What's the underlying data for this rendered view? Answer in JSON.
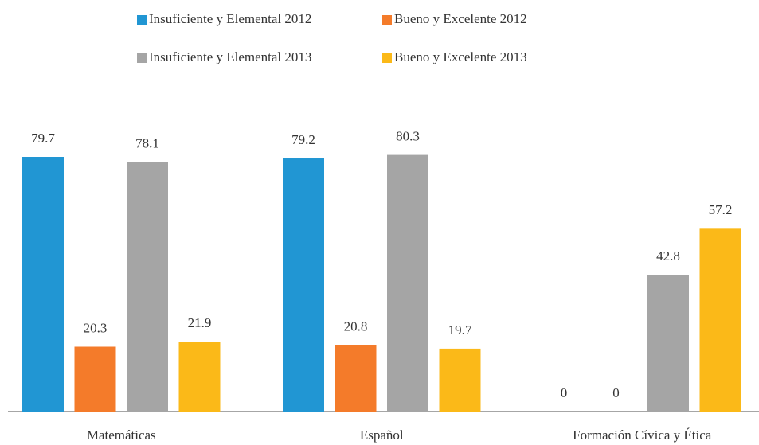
{
  "chart_data": {
    "type": "bar",
    "categories": [
      "Matemáticas",
      "Español",
      "Formación Cívica y Ética"
    ],
    "series": [
      {
        "name": "Insuficiente y Elemental 2012",
        "color": "#2196d3",
        "values": [
          79.7,
          79.2,
          0
        ]
      },
      {
        "name": "Bueno y Excelente 2012",
        "color": "#f47b2a",
        "values": [
          20.3,
          20.8,
          0
        ]
      },
      {
        "name": "Insuficiente y Elemental 2013",
        "color": "#a5a5a5",
        "values": [
          78.1,
          80.3,
          42.8
        ]
      },
      {
        "name": "Bueno y Excelente 2013",
        "color": "#fbb918",
        "values": [
          21.9,
          19.7,
          57.2
        ]
      }
    ]
  }
}
